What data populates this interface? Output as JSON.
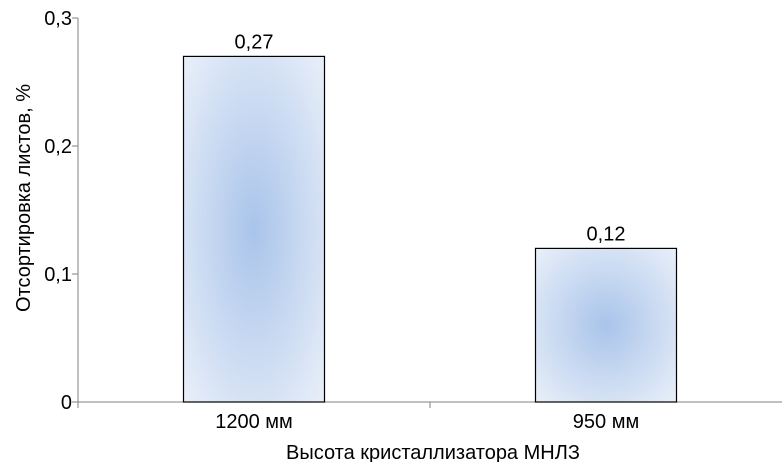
{
  "chart_data": {
    "type": "bar",
    "categories": [
      "1200 мм",
      "950 мм"
    ],
    "values": [
      0.27,
      0.12
    ],
    "data_labels": [
      "0,27",
      "0,12"
    ],
    "title": "",
    "xlabel": "Высота кристаллизатора МНЛЗ",
    "ylabel": "Отсортировка листов, %",
    "ylim": [
      0,
      0.3
    ],
    "yticks": [
      {
        "value": 0,
        "label": "0"
      },
      {
        "value": 0.1,
        "label": "0,1"
      },
      {
        "value": 0.2,
        "label": "0,2"
      },
      {
        "value": 0.3,
        "label": "0,3"
      }
    ],
    "grid": false,
    "legend": "none",
    "colors": {
      "bar_center": "#a9c4ea",
      "bar_edge": "#e6eef9",
      "bar_outline": "#000000",
      "axis": "#808080"
    }
  }
}
